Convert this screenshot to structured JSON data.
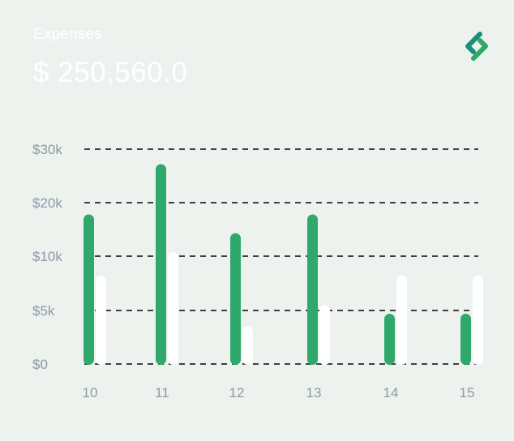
{
  "header": {
    "label": "Expenses",
    "total": "$ 250,560.0"
  },
  "logo": {
    "icon": "s-link-logo-icon"
  },
  "chart_data": {
    "type": "bar",
    "categories": [
      "10",
      "11",
      "12",
      "13",
      "14",
      "15"
    ],
    "series": [
      {
        "color": "#2ea86b",
        "values": [
          17800,
          27200,
          14300,
          17800,
          4700,
          4700
        ]
      },
      {
        "color": "#ffffff",
        "values": [
          8200,
          10800,
          3500,
          5500,
          8200,
          8200
        ]
      }
    ],
    "y_ticks": [
      {
        "value": 0,
        "label": "$0"
      },
      {
        "value": 5000,
        "label": "$5k"
      },
      {
        "value": 10000,
        "label": "$10k"
      },
      {
        "value": 20000,
        "label": "$20k"
      },
      {
        "value": 30000,
        "label": "$30k"
      }
    ],
    "grid": true,
    "grid_style": "dashed"
  }
}
